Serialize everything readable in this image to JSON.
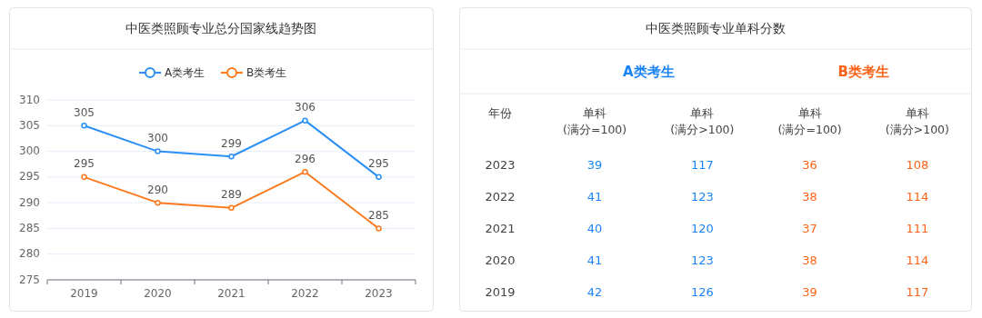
{
  "chart_data": [
    {
      "type": "line",
      "title": "中医类照顾专业总分国家线趋势图",
      "categories": [
        "2019",
        "2020",
        "2021",
        "2022",
        "2023"
      ],
      "series": [
        {
          "name": "A类考生",
          "color": "#2b90f5",
          "values": [
            305,
            300,
            299,
            306,
            295
          ]
        },
        {
          "name": "B类考生",
          "color": "#fb7a1e",
          "values": [
            295,
            290,
            289,
            296,
            285
          ]
        }
      ],
      "ylim": [
        275,
        310
      ],
      "yticks": [
        275,
        280,
        285,
        290,
        295,
        300,
        305,
        310
      ],
      "grid": "y",
      "legend": "top",
      "marker": "circle",
      "line_style": "solid",
      "data_labels": true
    },
    {
      "type": "heatmap",
      "title": "中医类照顾专业单科分数",
      "ylabel": "年份",
      "annotations": [
        "A类考生",
        "B类考生"
      ],
      "categories": [
        "单科(满分=100)",
        "单科(满分>100)",
        "单科(满分=100)",
        "单科(满分>100)"
      ],
      "colors": [
        "#1a84f5",
        "#1a84f5",
        "#fa6418",
        "#fa6418"
      ],
      "y_categories": [
        "2023",
        "2022",
        "2021",
        "2020",
        "2019"
      ],
      "cells": [
        [
          39,
          117,
          36,
          108
        ],
        [
          41,
          123,
          38,
          114
        ],
        [
          40,
          120,
          37,
          111
        ],
        [
          41,
          123,
          38,
          114
        ],
        [
          42,
          126,
          39,
          117
        ]
      ],
      "data_labels": true
    }
  ]
}
